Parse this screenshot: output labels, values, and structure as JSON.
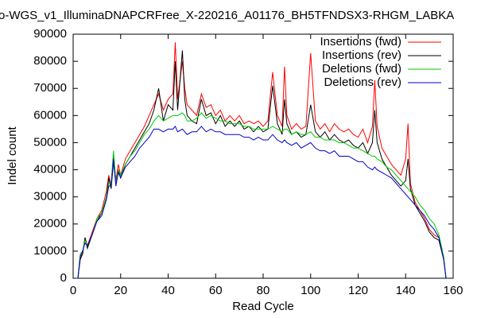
{
  "chart_data": {
    "type": "line",
    "title": "o-WGS_v1_IlluminaDNAPCRFree_X-220216_A01176_BH5TFNDSX3-RHGM_LABKA",
    "x_label": "Read Cycle",
    "y_label": "Indel count",
    "x": [
      1,
      2,
      3,
      4,
      5,
      6,
      8,
      10,
      12,
      14,
      15,
      16,
      17,
      18,
      19,
      20,
      22,
      24,
      26,
      28,
      30,
      32,
      34,
      36,
      38,
      40,
      42,
      43,
      44,
      46,
      47,
      48,
      50,
      52,
      54,
      56,
      58,
      60,
      62,
      64,
      66,
      68,
      70,
      72,
      74,
      76,
      78,
      80,
      82,
      84,
      86,
      88,
      89,
      90,
      92,
      94,
      96,
      98,
      100,
      102,
      104,
      106,
      108,
      110,
      112,
      114,
      116,
      118,
      120,
      122,
      124,
      126,
      127,
      128,
      130,
      132,
      134,
      136,
      138,
      140,
      141,
      142,
      144,
      146,
      148,
      150,
      152,
      154,
      156,
      157
    ],
    "series": [
      {
        "name": "Insertions (fwd)",
        "color": "#ff0000",
        "values": [
          0,
          0,
          8000,
          9000,
          15000,
          12000,
          17000,
          22000,
          25000,
          32000,
          38000,
          34000,
          45000,
          36000,
          42000,
          38000,
          44000,
          47000,
          50000,
          53000,
          56000,
          60000,
          64000,
          68000,
          62000,
          66000,
          68000,
          87000,
          66000,
          80000,
          70000,
          64000,
          62000,
          60000,
          68000,
          63000,
          64000,
          60000,
          62000,
          58000,
          60000,
          58000,
          60000,
          57000,
          58000,
          57000,
          58000,
          56000,
          58000,
          76000,
          60000,
          56000,
          78000,
          60000,
          55000,
          57000,
          55000,
          56000,
          83000,
          58000,
          55000,
          57000,
          54000,
          57000,
          55000,
          54000,
          55000,
          53000,
          52000,
          55000,
          50000,
          56000,
          73000,
          56000,
          48000,
          45000,
          42000,
          40000,
          38000,
          44000,
          57000,
          35000,
          28000,
          25000,
          22000,
          18000,
          16000,
          15000,
          8000,
          0
        ]
      },
      {
        "name": "Insertions (rev)",
        "color": "#000000",
        "values": [
          0,
          0,
          7000,
          9000,
          15000,
          11000,
          16000,
          21000,
          24000,
          30000,
          37000,
          33000,
          43000,
          35000,
          40000,
          37000,
          42000,
          45000,
          48000,
          51000,
          54000,
          57000,
          62000,
          70000,
          58000,
          64000,
          62000,
          80000,
          62000,
          84000,
          66000,
          60000,
          58000,
          57000,
          66000,
          60000,
          61000,
          57000,
          60000,
          56000,
          58000,
          56000,
          58000,
          55000,
          56000,
          54000,
          56000,
          54000,
          55000,
          71000,
          57000,
          53000,
          66000,
          57000,
          53000,
          54000,
          52000,
          53000,
          64000,
          54000,
          52000,
          54000,
          51000,
          53000,
          51000,
          50000,
          51000,
          49000,
          48000,
          50000,
          46000,
          50000,
          62000,
          50000,
          44000,
          41000,
          38000,
          36000,
          34000,
          36000,
          44000,
          33000,
          27000,
          24000,
          21000,
          17000,
          15000,
          14000,
          7000,
          0
        ]
      },
      {
        "name": "Deletions (fwd)",
        "color": "#00cc00",
        "values": [
          0,
          0,
          9000,
          10000,
          14000,
          12000,
          16000,
          22000,
          24000,
          30000,
          35000,
          35000,
          47000,
          35000,
          40000,
          38000,
          42000,
          45000,
          47000,
          50000,
          53000,
          55000,
          58000,
          60000,
          58000,
          59000,
          60000,
          60000,
          60000,
          61000,
          60000,
          58000,
          58000,
          59000,
          61000,
          59000,
          60000,
          59000,
          58000,
          58000,
          57000,
          57000,
          57000,
          56000,
          56000,
          55000,
          55000,
          55000,
          55000,
          56000,
          55000,
          54000,
          55000,
          55000,
          53000,
          54000,
          53000,
          53000,
          54000,
          52000,
          52000,
          51000,
          51000,
          51000,
          50000,
          50000,
          49000,
          48000,
          48000,
          47000,
          46000,
          45000,
          45000,
          44000,
          43000,
          41000,
          40000,
          38000,
          36000,
          34000,
          33000,
          32000,
          30000,
          27000,
          25000,
          22000,
          20000,
          16000,
          8000,
          0
        ]
      },
      {
        "name": "Deletions (rev)",
        "color": "#0000cc",
        "values": [
          0,
          0,
          8000,
          10000,
          13000,
          12000,
          16000,
          21000,
          23000,
          29000,
          34000,
          34000,
          44000,
          34000,
          39000,
          37000,
          41000,
          43000,
          45000,
          48000,
          50000,
          52000,
          55000,
          55000,
          54000,
          55000,
          55000,
          56000,
          54000,
          55000,
          54000,
          53000,
          54000,
          54000,
          56000,
          54000,
          55000,
          54000,
          54000,
          53000,
          53000,
          53000,
          53000,
          52000,
          52000,
          51000,
          52000,
          51000,
          51000,
          53000,
          51000,
          50000,
          51000,
          50000,
          49000,
          50000,
          48000,
          49000,
          50000,
          48000,
          47000,
          47000,
          46000,
          47000,
          45000,
          45000,
          45000,
          44000,
          43000,
          43000,
          41000,
          40000,
          41000,
          40000,
          39000,
          38000,
          37000,
          35000,
          33000,
          31000,
          30000,
          29000,
          27000,
          25000,
          23000,
          20000,
          18000,
          15000,
          7000,
          0
        ]
      }
    ],
    "xlim": [
      0,
      160
    ],
    "xticks": [
      0,
      20,
      40,
      60,
      80,
      100,
      120,
      140,
      160
    ],
    "ylim": [
      0,
      90000
    ],
    "yticks": [
      0,
      10000,
      20000,
      30000,
      40000,
      50000,
      60000,
      70000,
      80000,
      90000
    ],
    "legend": "top-right"
  }
}
